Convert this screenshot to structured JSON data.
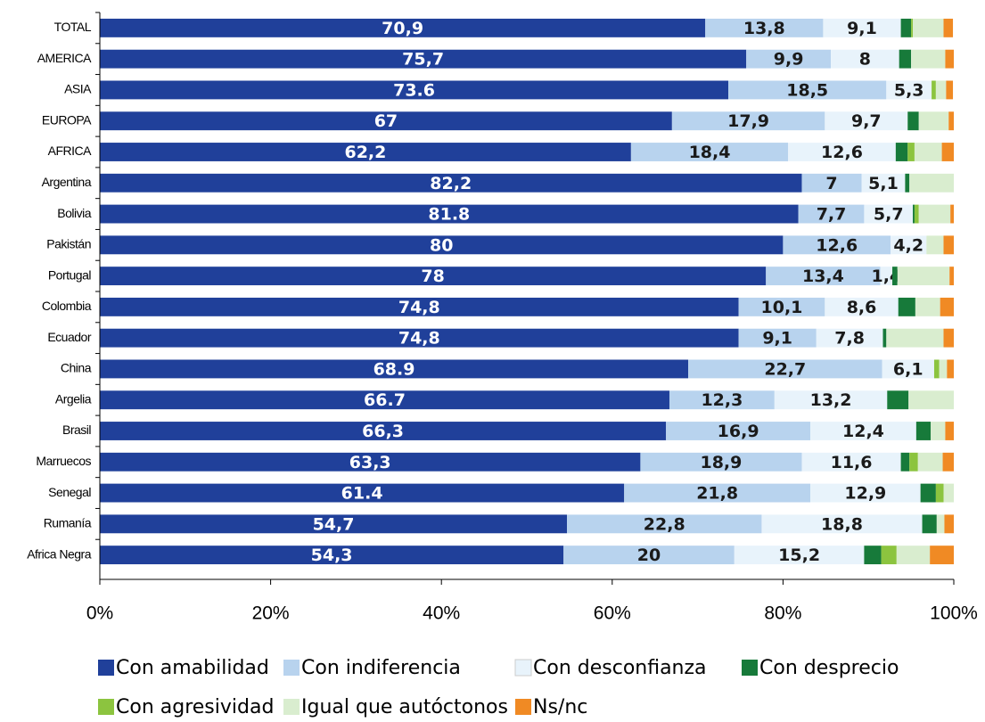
{
  "chart_data": {
    "type": "stacked-barh",
    "categories": [
      "TOTAL",
      "AMERICA",
      "ASIA",
      "EUROPA",
      "AFRICA",
      "Argentina",
      "Bolivia",
      "Pakistán",
      "Portugal",
      "Colombia",
      "Ecuador",
      "China",
      "Argelia",
      "Brasil",
      "Marruecos",
      "Senegal",
      "Rumanía",
      "Africa Negra"
    ],
    "xlim": [
      0,
      100
    ],
    "xticks": [
      {
        "value": 0,
        "label": "0%"
      },
      {
        "value": 20,
        "label": "20%"
      },
      {
        "value": 40,
        "label": "40%"
      },
      {
        "value": 60,
        "label": "60%"
      },
      {
        "value": 80,
        "label": "80%"
      },
      {
        "value": 100,
        "label": "100%"
      }
    ],
    "grid": false,
    "legend": "bottom",
    "series": [
      {
        "name": "Con amabilidad",
        "color": "#20409a",
        "label_color": "#ffffff",
        "values": [
          70.9,
          75.7,
          73.6,
          67,
          62.2,
          82.2,
          81.8,
          80,
          78,
          74.8,
          74.8,
          68.9,
          66.7,
          66.3,
          63.3,
          61.4,
          54.7,
          54.3
        ],
        "value_labels": [
          "70,9",
          "75,7",
          "73.6",
          "67",
          "62,2",
          "82,2",
          "81.8",
          "80",
          "78",
          "74,8",
          "74,8",
          "68.9",
          "66.7",
          "66,3",
          "63,3",
          "61.4",
          "54,7",
          "54,3"
        ]
      },
      {
        "name": "Con indiferencia",
        "color": "#b8d3ee",
        "label_color": "#1a1a1a",
        "values": [
          13.8,
          9.9,
          18.5,
          17.9,
          18.4,
          7,
          7.7,
          12.6,
          13.4,
          10.1,
          9.1,
          22.7,
          12.3,
          16.9,
          18.9,
          21.8,
          22.8,
          20
        ],
        "value_labels": [
          "13,8",
          "9,9",
          "18,5",
          "17,9",
          "18,4",
          "7",
          "7,7",
          "12,6",
          "13,4",
          "10,1",
          "9,1",
          "22,7",
          "12,3",
          "16,9",
          "18,9",
          "21,8",
          "22,8",
          "20"
        ]
      },
      {
        "name": "Con desconfianza",
        "color": "#e8f3fb",
        "label_color": "#1a1a1a",
        "values": [
          9.1,
          8,
          5.3,
          9.7,
          12.6,
          5.1,
          5.7,
          4.2,
          1.4,
          8.6,
          7.8,
          6.1,
          13.2,
          12.4,
          11.6,
          12.9,
          18.8,
          15.2
        ],
        "value_labels": [
          "9,1",
          "8",
          "5,3",
          "9,7",
          "12,6",
          "5,1",
          "5,7",
          "4,2",
          "1,4",
          "8,6",
          "7,8",
          "6,1",
          "13,2",
          "12,4",
          "11,6",
          "12,9",
          "18,8",
          "15,2"
        ]
      },
      {
        "name": "Con desprecio",
        "color": "#177a3a",
        "values": [
          1.2,
          1.4,
          0,
          1.3,
          1.4,
          0.5,
          0.2,
          0,
          0.6,
          2.0,
          0.4,
          0,
          2.5,
          1.7,
          1.0,
          1.8,
          1.7,
          2.0
        ]
      },
      {
        "name": "Con agresividad",
        "color": "#8cc43f",
        "values": [
          0.2,
          0,
          0.5,
          0,
          0.8,
          0,
          0.5,
          0,
          0,
          0,
          0,
          0.6,
          0,
          0,
          1.0,
          0.9,
          0,
          1.8
        ]
      },
      {
        "name": "Igual que autóctonos",
        "color": "#d9edcf",
        "values": [
          3.6,
          4.0,
          1.2,
          3.5,
          3.2,
          5.2,
          3.7,
          2.0,
          6.1,
          2.9,
          6.7,
          0.9,
          5.3,
          1.7,
          2.9,
          1.2,
          0.9,
          3.9
        ]
      },
      {
        "name": "Ns/nc",
        "color": "#f08a24",
        "values": [
          1.1,
          1.0,
          0.8,
          0.6,
          1.4,
          0,
          0.4,
          1.2,
          0.5,
          1.6,
          1.2,
          0.8,
          0,
          1.0,
          1.3,
          0,
          1.1,
          2.8
        ]
      }
    ]
  }
}
